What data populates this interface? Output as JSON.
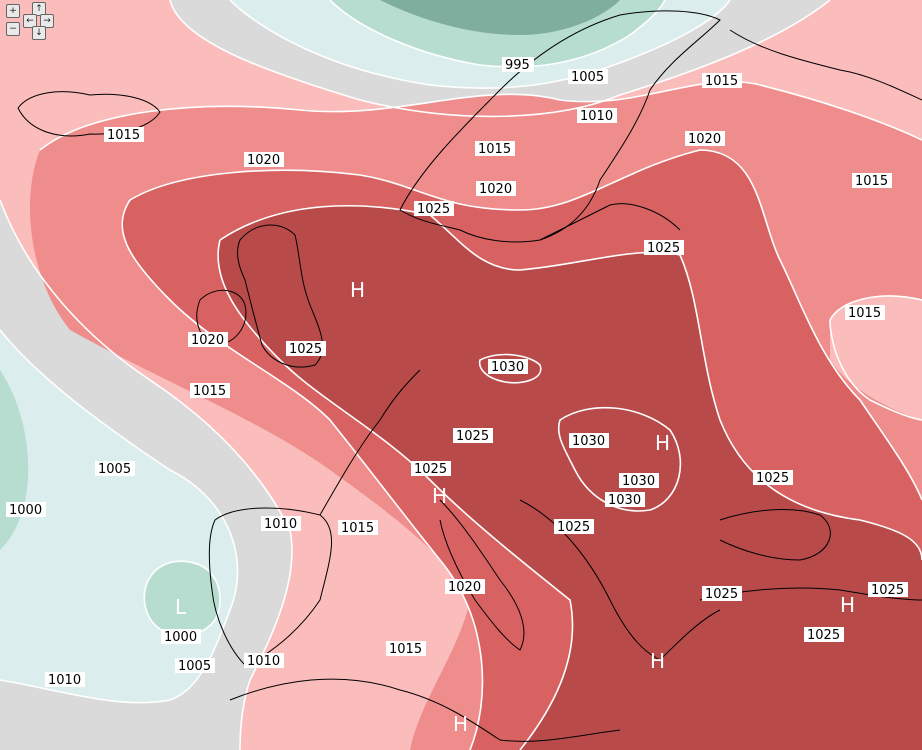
{
  "colors": {
    "h1000": "#b7ddd1",
    "h1005": "#dbeeed",
    "h1010": "#dadada",
    "h1015": "#fbbcbc",
    "h1020": "#ef8d8c",
    "h1025": "#d86262",
    "h1030": "#b84a4a",
    "isobar": "#ffffff",
    "coast": "#000000",
    "deep_low": "#7fae9f"
  },
  "isobar_labels": [
    "995",
    "1000",
    "1005",
    "1010",
    "1015",
    "1020",
    "1025",
    "1030"
  ],
  "pressure_centres": [
    "H",
    "L"
  ],
  "nav": {
    "zoom_in": "+",
    "zoom_out": "−",
    "up": "↑",
    "down": "↓",
    "left": "←",
    "right": "→"
  }
}
